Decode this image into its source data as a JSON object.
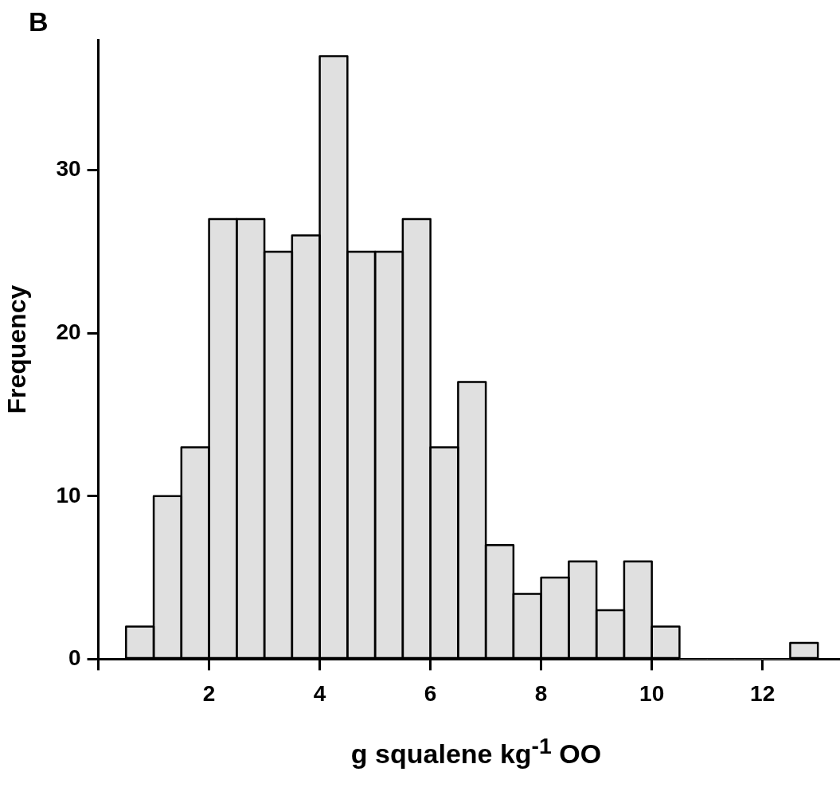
{
  "chart_data": {
    "type": "histogram",
    "xlabel": "g squalene kg$^{-1}$ OO",
    "ylabel": "Frequency",
    "annotations": [
      "B"
    ],
    "bins": [
      0.5,
      1,
      1.5,
      2,
      2.5,
      3,
      3.5,
      4,
      4.5,
      5,
      5.5,
      6,
      6.5,
      7,
      7.5,
      8,
      8.5,
      9,
      9.5,
      10,
      10.5,
      11,
      11.5,
      12,
      12.5,
      13
    ],
    "values": [
      2,
      10,
      13,
      27,
      27,
      25,
      26,
      37,
      25,
      25,
      27,
      13,
      17,
      7,
      4,
      5,
      6,
      3,
      6,
      2,
      0,
      0,
      0,
      0,
      1
    ],
    "color": "#e0e0e0",
    "xlim": [
      0,
      13.4
    ],
    "xticks": [
      {
        "value": 0,
        "label": null
      },
      2,
      4,
      6,
      8,
      10,
      12
    ],
    "ylim": [
      0,
      38
    ],
    "yticks": [
      0,
      10,
      20,
      30
    ]
  }
}
